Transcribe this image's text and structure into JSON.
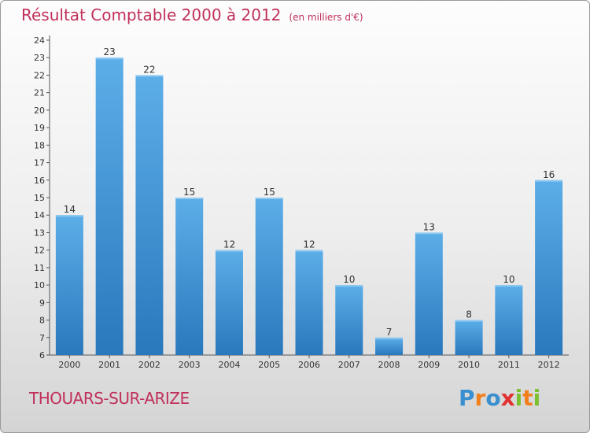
{
  "title": "Résultat Comptable 2000 à 2012",
  "unit": "(en milliers d'€)",
  "town": "THOUARS-SUR-ARIZE",
  "logo": {
    "text": "Proxiti",
    "letters": [
      "P",
      "r",
      "o",
      "x",
      "i",
      "t",
      "i"
    ],
    "colors": [
      "#3a8fd0",
      "#f07f1c",
      "#3a8fd0",
      "#e03030",
      "#7cbf2f",
      "#f07f1c",
      "#7cbf2f"
    ]
  },
  "colors": {
    "bar_top": "#5caee8",
    "bar_bottom": "#2a78bd",
    "text": "#c0305a"
  },
  "chart_data": {
    "type": "bar",
    "title": "Résultat Comptable 2000 à 2012",
    "ylabel": "en milliers d'€",
    "xlabel": "",
    "categories": [
      "2000",
      "2001",
      "2002",
      "2003",
      "2004",
      "2005",
      "2006",
      "2007",
      "2008",
      "2009",
      "2010",
      "2011",
      "2012"
    ],
    "values": [
      14,
      23,
      22,
      15,
      12,
      15,
      12,
      10,
      7,
      13,
      8,
      10,
      16
    ],
    "ylim": [
      6,
      24
    ],
    "yticks": [
      6,
      7,
      8,
      9,
      10,
      11,
      12,
      13,
      14,
      15,
      16,
      17,
      18,
      19,
      20,
      21,
      22,
      23,
      24
    ]
  }
}
